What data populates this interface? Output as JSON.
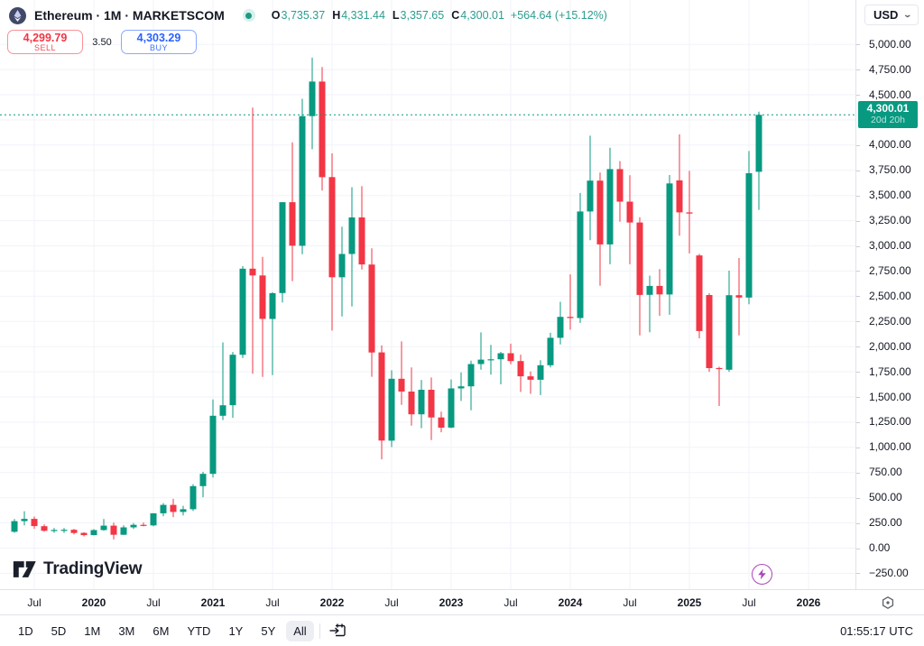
{
  "header": {
    "symbol_title": "Ethereum · 1M · MARKETSCOM",
    "ohlc": [
      {
        "letter": "O",
        "value": "3,735.37"
      },
      {
        "letter": "H",
        "value": "4,331.44"
      },
      {
        "letter": "L",
        "value": "3,357.65"
      },
      {
        "letter": "C",
        "value": "4,300.01"
      }
    ],
    "change_text": "+564.64 (+15.12%)",
    "currency": "USD"
  },
  "trade_panel": {
    "sell_price": "4,299.79",
    "sell_label": "SELL",
    "spread": "3.50",
    "buy_price": "4,303.29",
    "buy_label": "BUY"
  },
  "price_axis": {
    "ticks": [
      {
        "label": "5,000.00",
        "value": 5000
      },
      {
        "label": "4,750.00",
        "value": 4750
      },
      {
        "label": "4,500.00",
        "value": 4500
      },
      {
        "label": "4,000.00",
        "value": 4000
      },
      {
        "label": "3,750.00",
        "value": 3750
      },
      {
        "label": "3,500.00",
        "value": 3500
      },
      {
        "label": "3,250.00",
        "value": 3250
      },
      {
        "label": "3,000.00",
        "value": 3000
      },
      {
        "label": "2,750.00",
        "value": 2750
      },
      {
        "label": "2,500.00",
        "value": 2500
      },
      {
        "label": "2,250.00",
        "value": 2250
      },
      {
        "label": "2,000.00",
        "value": 2000
      },
      {
        "label": "1,750.00",
        "value": 1750
      },
      {
        "label": "1,500.00",
        "value": 1500
      },
      {
        "label": "1,250.00",
        "value": 1250
      },
      {
        "label": "1,000.00",
        "value": 1000
      },
      {
        "label": "750.00",
        "value": 750
      },
      {
        "label": "500.00",
        "value": 500
      },
      {
        "label": "250.00",
        "value": 250
      },
      {
        "label": "0.00",
        "value": 0
      },
      {
        "label": "−250.00",
        "value": -250
      }
    ],
    "last_price_badge": {
      "price": "4,300.01",
      "countdown": "20d 20h"
    }
  },
  "time_axis": {
    "labels": [
      {
        "text": "Jul",
        "m": -6,
        "bold": false
      },
      {
        "text": "2020",
        "m": 0,
        "bold": true
      },
      {
        "text": "Jul",
        "m": 6,
        "bold": false
      },
      {
        "text": "2021",
        "m": 12,
        "bold": true
      },
      {
        "text": "Jul",
        "m": 18,
        "bold": false
      },
      {
        "text": "2022",
        "m": 24,
        "bold": true
      },
      {
        "text": "Jul",
        "m": 30,
        "bold": false
      },
      {
        "text": "2023",
        "m": 36,
        "bold": true
      },
      {
        "text": "Jul",
        "m": 42,
        "bold": false
      },
      {
        "text": "2024",
        "m": 48,
        "bold": true
      },
      {
        "text": "Jul",
        "m": 54,
        "bold": false
      },
      {
        "text": "2025",
        "m": 60,
        "bold": true
      },
      {
        "text": "Jul",
        "m": 66,
        "bold": false
      },
      {
        "text": "2026",
        "m": 72,
        "bold": true
      }
    ]
  },
  "toolbar": {
    "ranges": [
      "1D",
      "5D",
      "1M",
      "3M",
      "6M",
      "YTD",
      "1Y",
      "5Y",
      "All"
    ],
    "active_range": "All",
    "clock": "01:55:17 UTC"
  },
  "branding": {
    "logo_text": "TradingView"
  },
  "colors": {
    "up": "#089981",
    "down": "#f23645",
    "buy_blue": "#2962ff",
    "sell_red": "#f23645",
    "grid": "#f0f3fa",
    "badge_green": "#089981",
    "purple": "#ab47bc"
  },
  "chart_data": {
    "type": "candlestick",
    "title": "Ethereum ETH/USD · 1 Month · MARKETSCOM",
    "symbol": "ETH/USD",
    "timeframe": "1M",
    "last_price": 4300.01,
    "y_axis": {
      "min": -250,
      "max": 5000,
      "tick_step": 250,
      "grid": true
    },
    "x_axis": {
      "first_month": "2019-05",
      "last_month": "2025-08",
      "grid_every_months": 6
    },
    "candles": [
      [
        "2019-05",
        162,
        288,
        152,
        268
      ],
      [
        "2019-06",
        268,
        366,
        226,
        290
      ],
      [
        "2019-07",
        290,
        313,
        192,
        218
      ],
      [
        "2019-08",
        218,
        235,
        163,
        172
      ],
      [
        "2019-09",
        172,
        200,
        152,
        180
      ],
      [
        "2019-10",
        180,
        199,
        151,
        182
      ],
      [
        "2019-11",
        182,
        191,
        135,
        151
      ],
      [
        "2019-12",
        151,
        158,
        116,
        129
      ],
      [
        "2020-01",
        129,
        188,
        126,
        179
      ],
      [
        "2020-02",
        179,
        289,
        173,
        223
      ],
      [
        "2020-03",
        223,
        253,
        86,
        133
      ],
      [
        "2020-04",
        133,
        227,
        131,
        206
      ],
      [
        "2020-05",
        206,
        248,
        190,
        231
      ],
      [
        "2020-06",
        231,
        254,
        216,
        226
      ],
      [
        "2020-07",
        226,
        346,
        216,
        346
      ],
      [
        "2020-08",
        346,
        447,
        317,
        429
      ],
      [
        "2020-09",
        429,
        489,
        308,
        359
      ],
      [
        "2020-10",
        359,
        420,
        325,
        386
      ],
      [
        "2020-11",
        386,
        635,
        368,
        615
      ],
      [
        "2020-12",
        615,
        758,
        505,
        737
      ],
      [
        "2021-01",
        737,
        1475,
        700,
        1314
      ],
      [
        "2021-02",
        1314,
        2042,
        1271,
        1418
      ],
      [
        "2021-03",
        1418,
        1947,
        1293,
        1919
      ],
      [
        "2021-04",
        1919,
        2798,
        1886,
        2773
      ],
      [
        "2021-05",
        2773,
        4373,
        1730,
        2706
      ],
      [
        "2021-06",
        2706,
        2891,
        1700,
        2275
      ],
      [
        "2021-07",
        2275,
        2540,
        1718,
        2531
      ],
      [
        "2021-08",
        2531,
        3433,
        2438,
        3433
      ],
      [
        "2021-09",
        3433,
        4028,
        2650,
        3001
      ],
      [
        "2021-10",
        3001,
        4460,
        2917,
        4288
      ],
      [
        "2021-11",
        4288,
        4868,
        3959,
        4631
      ],
      [
        "2021-12",
        4631,
        4776,
        3550,
        3682
      ],
      [
        "2022-01",
        3682,
        3918,
        2159,
        2688
      ],
      [
        "2022-02",
        2688,
        3190,
        2300,
        2919
      ],
      [
        "2022-03",
        2919,
        3582,
        2399,
        3282
      ],
      [
        "2022-04",
        3282,
        3592,
        2765,
        2815
      ],
      [
        "2022-05",
        2815,
        2975,
        1701,
        1942
      ],
      [
        "2022-06",
        1942,
        2013,
        881,
        1067
      ],
      [
        "2022-07",
        1067,
        1765,
        1003,
        1681
      ],
      [
        "2022-08",
        1681,
        2052,
        1422,
        1554
      ],
      [
        "2022-09",
        1554,
        1794,
        1215,
        1328
      ],
      [
        "2022-10",
        1328,
        1669,
        1190,
        1572
      ],
      [
        "2022-11",
        1572,
        1693,
        1073,
        1297
      ],
      [
        "2022-12",
        1297,
        1355,
        1150,
        1196
      ],
      [
        "2023-01",
        1196,
        1674,
        1190,
        1585
      ],
      [
        "2023-02",
        1585,
        1744,
        1461,
        1606
      ],
      [
        "2023-03",
        1606,
        1860,
        1368,
        1827
      ],
      [
        "2023-04",
        1827,
        2141,
        1771,
        1871
      ],
      [
        "2023-05",
        1871,
        2018,
        1721,
        1874
      ],
      [
        "2023-06",
        1874,
        1948,
        1625,
        1934
      ],
      [
        "2023-07",
        1934,
        2029,
        1825,
        1856
      ],
      [
        "2023-08",
        1856,
        1920,
        1550,
        1705
      ],
      [
        "2023-09",
        1705,
        1753,
        1531,
        1671
      ],
      [
        "2023-10",
        1671,
        1865,
        1519,
        1815
      ],
      [
        "2023-11",
        1815,
        2137,
        1793,
        2087
      ],
      [
        "2023-12",
        2087,
        2445,
        2022,
        2295
      ],
      [
        "2024-01",
        2295,
        2717,
        2168,
        2283
      ],
      [
        "2024-02",
        2283,
        3525,
        2235,
        3341
      ],
      [
        "2024-03",
        3341,
        4093,
        3056,
        3647
      ],
      [
        "2024-04",
        3647,
        3728,
        2604,
        3014
      ],
      [
        "2024-05",
        3014,
        3974,
        2817,
        3762
      ],
      [
        "2024-06",
        3762,
        3842,
        3240,
        3439
      ],
      [
        "2024-07",
        3439,
        3700,
        2817,
        3232
      ],
      [
        "2024-08",
        3232,
        3284,
        2111,
        2513
      ],
      [
        "2024-09",
        2513,
        2704,
        2142,
        2602
      ],
      [
        "2024-10",
        2602,
        2769,
        2306,
        2518
      ],
      [
        "2024-11",
        2518,
        3703,
        2316,
        3620
      ],
      [
        "2024-12",
        3650,
        4107,
        3101,
        3332
      ],
      [
        "2025-01",
        3332,
        3744,
        2925,
        3320
      ],
      [
        "2025-02",
        2905,
        2920,
        2082,
        2155
      ],
      [
        "2025-03",
        2512,
        2530,
        1750,
        1787
      ],
      [
        "2025-04",
        1787,
        1800,
        1410,
        1780
      ],
      [
        "2025-05",
        1770,
        2754,
        1750,
        2510
      ],
      [
        "2025-06",
        2510,
        2879,
        2111,
        2487
      ],
      [
        "2025-07",
        2487,
        3941,
        2420,
        3721
      ],
      [
        "2025-08",
        3735.37,
        4331.44,
        3357.65,
        4300.01
      ]
    ]
  }
}
